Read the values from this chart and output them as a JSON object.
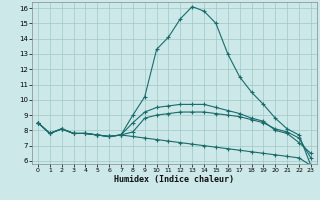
{
  "title": "",
  "xlabel": "Humidex (Indice chaleur)",
  "xlim": [
    -0.5,
    23.5
  ],
  "ylim": [
    5.8,
    16.4
  ],
  "yticks": [
    6,
    7,
    8,
    9,
    10,
    11,
    12,
    13,
    14,
    15,
    16
  ],
  "xticks": [
    0,
    1,
    2,
    3,
    4,
    5,
    6,
    7,
    8,
    9,
    10,
    11,
    12,
    13,
    14,
    15,
    16,
    17,
    18,
    19,
    20,
    21,
    22,
    23
  ],
  "background_color": "#cce8e8",
  "grid_color": "#a0c8c8",
  "line_color": "#1a6b6b",
  "series": [
    [
      8.5,
      7.8,
      8.1,
      7.8,
      7.8,
      7.7,
      7.6,
      7.7,
      9.0,
      10.2,
      13.3,
      14.1,
      15.3,
      16.1,
      15.8,
      15.0,
      13.0,
      11.5,
      10.5,
      9.7,
      8.8,
      8.1,
      7.7,
      5.7
    ],
    [
      8.5,
      7.8,
      8.1,
      7.8,
      7.8,
      7.7,
      7.6,
      7.7,
      8.5,
      9.2,
      9.5,
      9.6,
      9.7,
      9.7,
      9.7,
      9.5,
      9.3,
      9.1,
      8.8,
      8.6,
      8.0,
      7.8,
      7.2,
      6.5
    ],
    [
      8.5,
      7.8,
      8.1,
      7.8,
      7.8,
      7.7,
      7.6,
      7.7,
      7.9,
      8.8,
      9.0,
      9.1,
      9.2,
      9.2,
      9.2,
      9.1,
      9.0,
      8.9,
      8.7,
      8.5,
      8.1,
      7.9,
      7.5,
      6.2
    ],
    [
      8.5,
      7.8,
      8.1,
      7.8,
      7.8,
      7.7,
      7.6,
      7.7,
      7.6,
      7.5,
      7.4,
      7.3,
      7.2,
      7.1,
      7.0,
      6.9,
      6.8,
      6.7,
      6.6,
      6.5,
      6.4,
      6.3,
      6.2,
      5.7
    ]
  ]
}
